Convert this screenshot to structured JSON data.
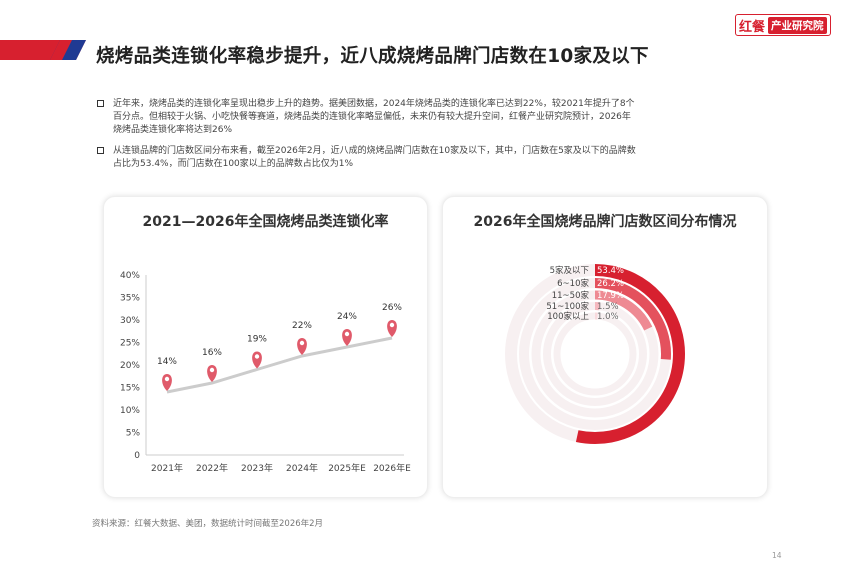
{
  "title": "烧烤品类连锁化率稳步提升，近八成烧烤品牌门店数在10家及以下",
  "logo": {
    "mark": "红餐",
    "text": "产业研究院"
  },
  "bullets": [
    {
      "line1": "近年来，烧烤品类的连锁化率呈现出稳步上升的趋势。据美团数据，2024年烧烤品类的连锁化率已达到22%，较2021年提升了8个",
      "line2": "百分点。但相较于火锅、小吃快餐等赛道，烧烤品类的连锁化率略显偏低，未来仍有较大提升空间，红餐产业研究院预计，2026年",
      "line3": "烧烤品类连锁化率将达到26%"
    },
    {
      "line1": "从连锁品牌的门店数区间分布来看，截至2026年2月，近八成的烧烤品牌门店数在10家及以下，其中，门店数在5家及以下的品牌数",
      "line2": "占比为53.4%，而门店数在100家以上的品牌数占比仅为1%"
    }
  ],
  "chart_data": [
    {
      "type": "line",
      "title": "2021—2026年全国烧烤品类连锁化率",
      "categories": [
        "2021年",
        "2022年",
        "2023年",
        "2024年",
        "2025年E",
        "2026年E"
      ],
      "values": [
        14,
        16,
        19,
        22,
        24,
        26
      ],
      "data_labels": [
        "14%",
        "16%",
        "19%",
        "22%",
        "24%",
        "26%"
      ],
      "yticks": [
        "0",
        "5%",
        "10%",
        "15%",
        "20%",
        "25%",
        "30%",
        "35%",
        "40%"
      ],
      "ylim": [
        0,
        40
      ],
      "line_color": "#cccccc",
      "marker_color": "#e05a6a"
    },
    {
      "type": "pie",
      "title": "2026年全国烧烤品牌门店数区间分布情况",
      "categories": [
        "5家及以下",
        "6~10家",
        "11~50家",
        "51~100家",
        "100家以上"
      ],
      "values": [
        53.4,
        26.2,
        17.9,
        1.5,
        1.0
      ],
      "data_labels": [
        "53.4%",
        "26.2%",
        "17.9%",
        "1.5%",
        "1.0%"
      ],
      "colors": [
        "#d7202f",
        "#e4515d",
        "#ee8a93",
        "#f5b9bf",
        "#f8dadd"
      ]
    }
  ],
  "source": "资料来源：红餐大数据、美团，数据统计时间截至2026年2月",
  "page_number": "14"
}
